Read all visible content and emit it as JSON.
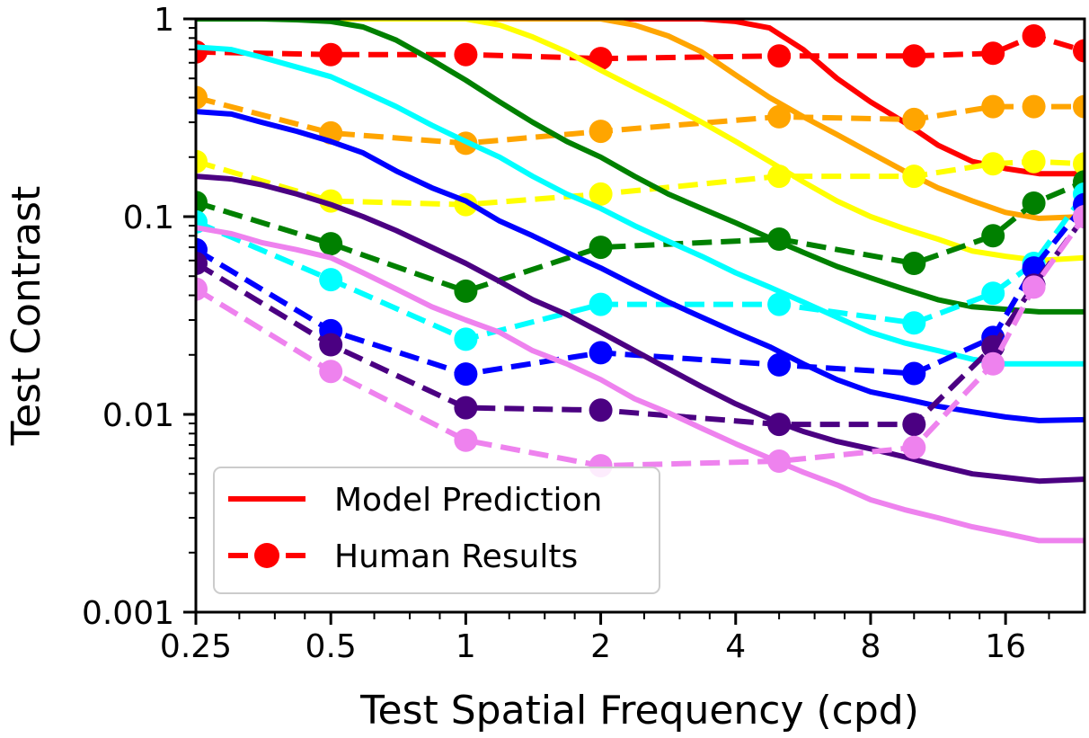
{
  "chart_data": {
    "type": "line",
    "xlabel": "Test Spatial Frequency (cpd)",
    "ylabel": "Test Contrast",
    "xscale": "log2",
    "yscale": "log10",
    "xlim": [
      0.25,
      24
    ],
    "ylim": [
      0.001,
      1
    ],
    "xticks": [
      0.25,
      0.5,
      1,
      2,
      4,
      8,
      16
    ],
    "xtick_labels": [
      "0.25",
      "0.5",
      "1",
      "2",
      "4",
      "8",
      "16"
    ],
    "yticks": [
      0.001,
      0.01,
      0.1,
      1
    ],
    "ytick_labels": [
      "0.001",
      "0.01",
      "0.1",
      "1"
    ],
    "grid": false,
    "legend": {
      "placement": "lower-left",
      "entries": [
        {
          "label": "Model Prediction",
          "style": "solid",
          "color": "#ff0000"
        },
        {
          "label": "Human Results",
          "style": "dashed-marker",
          "color": "#ff0000"
        }
      ]
    },
    "model_x": [
      0.25,
      0.3,
      0.35,
      0.42,
      0.5,
      0.59,
      0.7,
      0.84,
      1.0,
      1.19,
      1.41,
      1.68,
      2.0,
      2.38,
      2.83,
      3.36,
      4.0,
      4.76,
      5.66,
      6.73,
      8.0,
      9.51,
      11.3,
      13.5,
      16.0,
      19.0,
      24.0
    ],
    "human_x": [
      0.25,
      0.5,
      1.0,
      2.0,
      5.0,
      10.0,
      15.0,
      18.5,
      24.0
    ],
    "series": [
      {
        "color": "#ff0000",
        "model": [
          1,
          1,
          1,
          1,
          1,
          1,
          1,
          1,
          1,
          1,
          1,
          1,
          1,
          1,
          1,
          1,
          0.97,
          0.9,
          0.7,
          0.5,
          0.38,
          0.3,
          0.23,
          0.19,
          0.175,
          0.165,
          0.165
        ],
        "human": [
          0.68,
          0.66,
          0.66,
          0.63,
          0.65,
          0.65,
          0.67,
          0.82,
          0.69
        ]
      },
      {
        "color": "#ffa500",
        "model": [
          1,
          1,
          1,
          1,
          1,
          1,
          1,
          1,
          1,
          1,
          1,
          1,
          1,
          0.93,
          0.82,
          0.68,
          0.52,
          0.4,
          0.32,
          0.26,
          0.21,
          0.17,
          0.14,
          0.12,
          0.105,
          0.098,
          0.1
        ],
        "human": [
          0.4,
          0.265,
          0.235,
          0.27,
          0.32,
          0.31,
          0.36,
          0.36,
          0.36
        ]
      },
      {
        "color": "#ffff00",
        "model": [
          1,
          1,
          1,
          1,
          1,
          1,
          1,
          1,
          1,
          0.93,
          0.81,
          0.68,
          0.55,
          0.45,
          0.37,
          0.3,
          0.24,
          0.19,
          0.15,
          0.12,
          0.1,
          0.087,
          0.077,
          0.067,
          0.063,
          0.06,
          0.062
        ],
        "human": [
          0.19,
          0.12,
          0.115,
          0.13,
          0.16,
          0.16,
          0.185,
          0.19,
          0.185
        ]
      },
      {
        "color": "#008000",
        "model": [
          1,
          1,
          1,
          0.99,
          0.97,
          0.91,
          0.78,
          0.62,
          0.49,
          0.38,
          0.3,
          0.24,
          0.2,
          0.16,
          0.13,
          0.11,
          0.093,
          0.078,
          0.066,
          0.056,
          0.049,
          0.043,
          0.038,
          0.035,
          0.034,
          0.033,
          0.033
        ],
        "human": [
          0.118,
          0.073,
          0.042,
          0.07,
          0.077,
          0.058,
          0.08,
          0.117,
          0.15
        ]
      },
      {
        "color": "#00ffff",
        "model": [
          0.72,
          0.7,
          0.64,
          0.57,
          0.51,
          0.43,
          0.36,
          0.29,
          0.24,
          0.2,
          0.16,
          0.13,
          0.11,
          0.09,
          0.075,
          0.063,
          0.052,
          0.044,
          0.037,
          0.031,
          0.026,
          0.023,
          0.021,
          0.019,
          0.018,
          0.018,
          0.018
        ],
        "human": [
          0.094,
          0.048,
          0.024,
          0.036,
          0.036,
          0.029,
          0.041,
          0.058,
          0.13
        ]
      },
      {
        "color": "#0000ff",
        "model": [
          0.34,
          0.33,
          0.3,
          0.27,
          0.24,
          0.21,
          0.17,
          0.14,
          0.12,
          0.095,
          0.08,
          0.066,
          0.055,
          0.045,
          0.037,
          0.031,
          0.026,
          0.022,
          0.018,
          0.015,
          0.013,
          0.012,
          0.011,
          0.0103,
          0.0097,
          0.0093,
          0.0094
        ],
        "human": [
          0.068,
          0.0265,
          0.016,
          0.0205,
          0.0178,
          0.0161,
          0.0245,
          0.055,
          0.115
        ]
      },
      {
        "color": "#4b0082",
        "model": [
          0.16,
          0.155,
          0.145,
          0.13,
          0.115,
          0.1,
          0.085,
          0.07,
          0.058,
          0.047,
          0.038,
          0.032,
          0.026,
          0.021,
          0.017,
          0.0138,
          0.0113,
          0.0095,
          0.0082,
          0.0073,
          0.0067,
          0.0061,
          0.0055,
          0.005,
          0.0048,
          0.0046,
          0.0047
        ],
        "human": [
          0.058,
          0.0225,
          0.0108,
          0.0105,
          0.0089,
          0.0089,
          0.022,
          0.045,
          0.1
        ]
      },
      {
        "color": "#ee82ee",
        "model": [
          0.088,
          0.082,
          0.074,
          0.068,
          0.062,
          0.052,
          0.043,
          0.035,
          0.03,
          0.026,
          0.021,
          0.018,
          0.015,
          0.012,
          0.0102,
          0.0085,
          0.0071,
          0.006,
          0.0051,
          0.0044,
          0.0037,
          0.0033,
          0.003,
          0.0027,
          0.0025,
          0.0023,
          0.0023
        ],
        "human": [
          0.043,
          0.0165,
          0.0074,
          0.0055,
          0.0058,
          0.0068,
          0.018,
          0.044,
          0.1
        ]
      }
    ]
  }
}
